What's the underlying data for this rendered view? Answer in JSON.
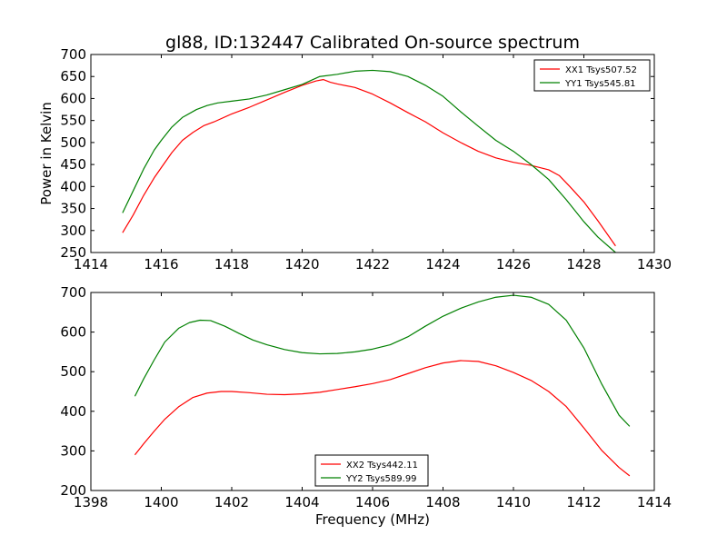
{
  "chart_data": [
    {
      "type": "line",
      "title": "gl88, ID:132447 Calibrated On-source spectrum",
      "xlabel": "",
      "ylabel": "Power in Kelvin",
      "xlim": [
        1414,
        1430
      ],
      "ylim": [
        250,
        700
      ],
      "xticks": [
        1414,
        1416,
        1418,
        1420,
        1422,
        1424,
        1426,
        1428,
        1430
      ],
      "yticks": [
        250,
        300,
        350,
        400,
        450,
        500,
        550,
        600,
        650,
        700
      ],
      "grid": false,
      "legend": "top-right",
      "series": [
        {
          "name": "XX1 Tsys507.52",
          "color": "#ff0000",
          "x": [
            1414.9,
            1415.2,
            1415.5,
            1415.8,
            1416.0,
            1416.3,
            1416.6,
            1416.9,
            1417.2,
            1417.5,
            1418.0,
            1418.5,
            1419.0,
            1419.5,
            1420.0,
            1420.4,
            1420.6,
            1420.8,
            1421.0,
            1421.5,
            1422.0,
            1422.5,
            1423.0,
            1423.5,
            1424.0,
            1424.5,
            1425.0,
            1425.5,
            1426.0,
            1426.5,
            1427.0,
            1427.3,
            1427.6,
            1428.0,
            1428.4,
            1428.9
          ],
          "values": [
            295,
            335,
            380,
            420,
            443,
            477,
            505,
            523,
            538,
            547,
            565,
            580,
            597,
            614,
            630,
            640,
            643,
            637,
            633,
            625,
            610,
            590,
            568,
            547,
            522,
            500,
            480,
            465,
            455,
            448,
            438,
            425,
            400,
            365,
            322,
            265
          ]
        },
        {
          "name": "YY1 Tsys545.81",
          "color": "#008000",
          "x": [
            1414.9,
            1415.2,
            1415.5,
            1415.8,
            1416.0,
            1416.3,
            1416.6,
            1417.0,
            1417.3,
            1417.6,
            1418.0,
            1418.5,
            1419.0,
            1419.5,
            1420.0,
            1420.5,
            1421.0,
            1421.5,
            1422.0,
            1422.5,
            1423.0,
            1423.5,
            1424.0,
            1424.5,
            1425.0,
            1425.5,
            1426.0,
            1426.5,
            1427.0,
            1427.5,
            1428.0,
            1428.4,
            1428.9
          ],
          "values": [
            340,
            390,
            440,
            483,
            505,
            535,
            557,
            575,
            584,
            590,
            594,
            599,
            608,
            620,
            632,
            650,
            655,
            662,
            664,
            661,
            650,
            630,
            605,
            570,
            537,
            505,
            480,
            450,
            416,
            370,
            320,
            285,
            250
          ]
        }
      ]
    },
    {
      "type": "line",
      "title": "",
      "xlabel": "Frequency (MHz)",
      "ylabel": "",
      "xlim": [
        1398,
        1414
      ],
      "ylim": [
        200,
        700
      ],
      "xticks": [
        1398,
        1400,
        1402,
        1404,
        1406,
        1408,
        1410,
        1412,
        1414
      ],
      "yticks": [
        200,
        300,
        400,
        500,
        600,
        700
      ],
      "grid": false,
      "legend": "bottom-center",
      "series": [
        {
          "name": "XX2 Tsys442.11",
          "color": "#ff0000",
          "x": [
            1399.25,
            1399.5,
            1399.8,
            1400.1,
            1400.5,
            1400.9,
            1401.3,
            1401.7,
            1402.0,
            1402.5,
            1403.0,
            1403.5,
            1404.0,
            1404.5,
            1405.0,
            1405.5,
            1406.0,
            1406.5,
            1407.0,
            1407.5,
            1408.0,
            1408.5,
            1409.0,
            1409.5,
            1410.0,
            1410.5,
            1411.0,
            1411.5,
            1412.0,
            1412.5,
            1413.0,
            1413.3
          ],
          "values": [
            290,
            318,
            350,
            380,
            412,
            435,
            446,
            450,
            450,
            447,
            443,
            442,
            444,
            448,
            455,
            462,
            470,
            480,
            495,
            510,
            522,
            528,
            526,
            515,
            498,
            478,
            450,
            412,
            358,
            302,
            258,
            237
          ]
        },
        {
          "name": "YY2 Tsys589.99",
          "color": "#008000",
          "x": [
            1399.25,
            1399.5,
            1399.8,
            1400.1,
            1400.5,
            1400.8,
            1401.1,
            1401.4,
            1401.8,
            1402.2,
            1402.6,
            1403.0,
            1403.5,
            1404.0,
            1404.5,
            1405.0,
            1405.5,
            1406.0,
            1406.5,
            1407.0,
            1407.5,
            1408.0,
            1408.5,
            1409.0,
            1409.5,
            1410.0,
            1410.5,
            1411.0,
            1411.5,
            1412.0,
            1412.5,
            1413.0,
            1413.3
          ],
          "values": [
            438,
            482,
            530,
            575,
            610,
            624,
            630,
            629,
            615,
            597,
            580,
            568,
            556,
            548,
            545,
            546,
            550,
            557,
            568,
            588,
            615,
            640,
            660,
            676,
            688,
            693,
            688,
            670,
            630,
            560,
            470,
            390,
            362
          ]
        }
      ]
    }
  ]
}
